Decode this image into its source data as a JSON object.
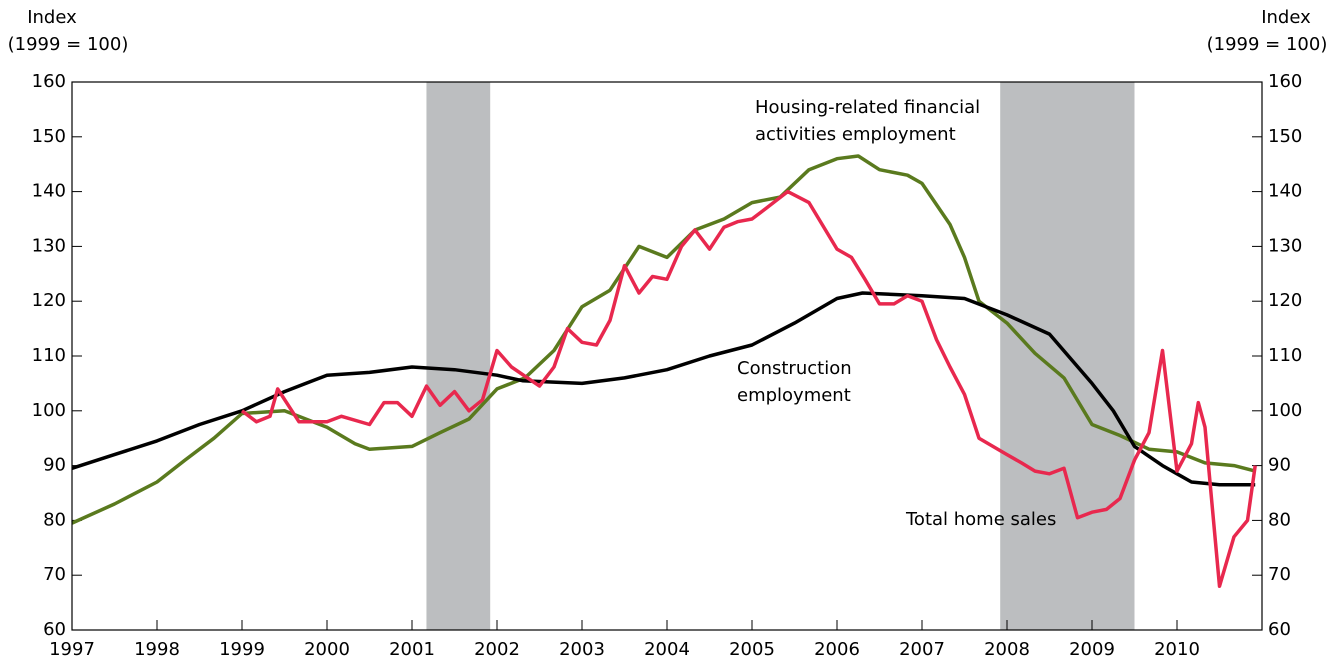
{
  "chart_data": {
    "type": "line",
    "y_axis_title": [
      "Index",
      "(1999 = 100)"
    ],
    "y2_axis_title": [
      "Index",
      "(1999 = 100)"
    ],
    "annotations": [
      [
        "Housing-related financial",
        "activities employment"
      ],
      [
        "Construction",
        "employment"
      ],
      [
        "Total home sales"
      ]
    ],
    "xlim": [
      1997,
      2011
    ],
    "xticks": [
      1997,
      1998,
      1999,
      2000,
      2001,
      2002,
      2003,
      2004,
      2005,
      2006,
      2007,
      2008,
      2009,
      2010
    ],
    "ylim": [
      60,
      160
    ],
    "yticks": [
      60,
      70,
      80,
      90,
      100,
      110,
      120,
      130,
      140,
      150,
      160
    ],
    "y2lim": [
      60,
      160
    ],
    "y2ticks": [
      60,
      70,
      80,
      90,
      100,
      110,
      120,
      130,
      140,
      150,
      160
    ],
    "shaded_regions": [
      [
        2001.17,
        2001.92
      ],
      [
        2007.92,
        2009.5
      ]
    ],
    "shade_color": "#bcbec0",
    "series": [
      {
        "name": "Housing-related financial activities employment",
        "color": "#5a7a1e",
        "x": [
          1997,
          1997.5,
          1998,
          1998.33,
          1998.67,
          1999,
          1999.5,
          2000,
          2000.33,
          2000.5,
          2001,
          2001.33,
          2001.67,
          2002,
          2002.33,
          2002.67,
          2003,
          2003.33,
          2003.5,
          2003.67,
          2004,
          2004.33,
          2004.67,
          2005,
          2005.33,
          2005.67,
          2006,
          2006.25,
          2006.5,
          2006.83,
          2007,
          2007.33,
          2007.5,
          2007.67,
          2008,
          2008.33,
          2008.67,
          2009,
          2009.33,
          2009.67,
          2010,
          2010.33,
          2010.67,
          2010.92
        ],
        "values": [
          79.5,
          83,
          87,
          91,
          95,
          99.5,
          100,
          97,
          94,
          93,
          93.5,
          96,
          98.5,
          104,
          106,
          111,
          119,
          122,
          126,
          130,
          128,
          133,
          135,
          138,
          139,
          144,
          146,
          146.5,
          144,
          143,
          141.5,
          134,
          128,
          120,
          116,
          110.5,
          106,
          97.5,
          95.5,
          93,
          92.5,
          90.5,
          90,
          89
        ]
      },
      {
        "name": "Construction employment",
        "color": "#000000",
        "x": [
          1997,
          1997.5,
          1998,
          1998.5,
          1999,
          1999.5,
          2000,
          2000.5,
          2001,
          2001.5,
          2002,
          2002.3,
          2003,
          2003.5,
          2004,
          2004.5,
          2005,
          2005.5,
          2006,
          2006.3,
          2007,
          2007.5,
          2008,
          2008.5,
          2009,
          2009.25,
          2009.5,
          2009.83,
          2010,
          2010.17,
          2010.5,
          2010.92
        ],
        "values": [
          89.5,
          92,
          94.5,
          97.5,
          100,
          103.5,
          106.5,
          107,
          108,
          107.5,
          106.5,
          105.5,
          105,
          106,
          107.5,
          110,
          112,
          116,
          120.5,
          121.5,
          121,
          120.5,
          117.5,
          114,
          105,
          100,
          93.5,
          90,
          88.5,
          87,
          86.5,
          86.5
        ]
      },
      {
        "name": "Total home sales",
        "color": "#e8284e",
        "x": [
          1999,
          1999.17,
          1999.33,
          1999.42,
          1999.67,
          2000,
          2000.17,
          2000.5,
          2000.67,
          2000.83,
          2001,
          2001.17,
          2001.33,
          2001.5,
          2001.67,
          2001.83,
          2002,
          2002.17,
          2002.5,
          2002.67,
          2002.83,
          2003,
          2003.17,
          2003.33,
          2003.5,
          2003.67,
          2003.83,
          2004,
          2004.17,
          2004.33,
          2004.5,
          2004.67,
          2004.83,
          2005,
          2005.17,
          2005.42,
          2005.67,
          2006,
          2006.17,
          2006.33,
          2006.5,
          2006.67,
          2006.83,
          2007,
          2007.17,
          2007.33,
          2007.5,
          2007.67,
          2008,
          2008.17,
          2008.33,
          2008.5,
          2008.67,
          2008.83,
          2009,
          2009.17,
          2009.33,
          2009.5,
          2009.67,
          2009.83,
          2010,
          2010.17,
          2010.25,
          2010.33,
          2010.5,
          2010.67,
          2010.83,
          2010.92
        ],
        "values": [
          100,
          98,
          99,
          104,
          98,
          98,
          99,
          97.5,
          101.5,
          101.5,
          99,
          104.5,
          101,
          103.5,
          100,
          102,
          111,
          108,
          104.5,
          108,
          115,
          112.5,
          112,
          116.5,
          126.5,
          121.5,
          124.5,
          124,
          130,
          133,
          129.5,
          133.5,
          134.5,
          135,
          137,
          140,
          138,
          129.5,
          128,
          124,
          119.5,
          119.5,
          121,
          120,
          113,
          108,
          103,
          95,
          92,
          90.5,
          89,
          88.5,
          89.5,
          80.5,
          81.5,
          82,
          84,
          91,
          96,
          111,
          89,
          94,
          101.5,
          97,
          68,
          77,
          80,
          90
        ]
      }
    ]
  }
}
